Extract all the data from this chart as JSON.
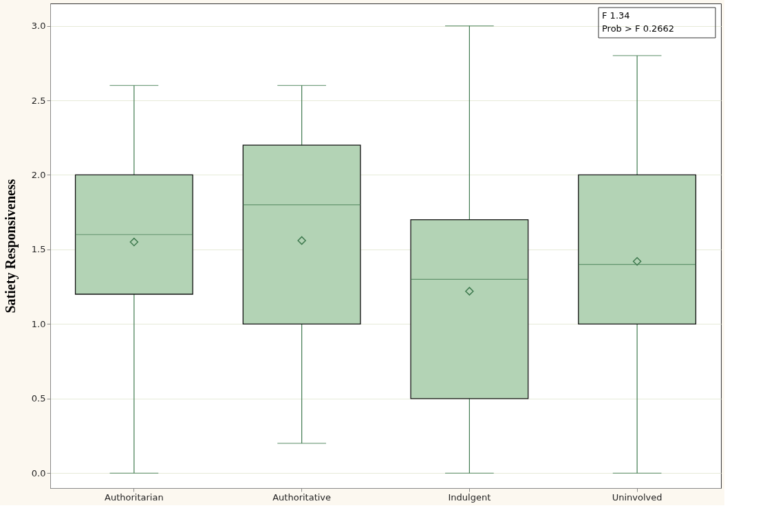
{
  "chart_data": {
    "type": "box",
    "ylabel": "Satiety Responsiveness",
    "categories": [
      "Authoritarian",
      "Authoritative",
      "Indulgent",
      "Uninvolved"
    ],
    "series": [
      {
        "color": "#b3d3b5",
        "boxes": [
          {
            "low": 0.0,
            "q1": 1.2,
            "median": 1.6,
            "q3": 2.0,
            "high": 2.6,
            "mean": 1.55
          },
          {
            "low": 0.2,
            "q1": 1.0,
            "median": 1.8,
            "q3": 2.2,
            "high": 2.6,
            "mean": 1.56
          },
          {
            "low": 0.0,
            "q1": 0.5,
            "median": 1.3,
            "q3": 1.7,
            "high": 3.0,
            "mean": 1.22
          },
          {
            "low": 0.0,
            "q1": 1.0,
            "median": 1.4,
            "q3": 2.0,
            "high": 2.8,
            "mean": 1.42
          }
        ]
      }
    ],
    "ylim": [
      -0.1,
      3.15
    ],
    "yticks": [
      {
        "value": 0,
        "label": "0.0"
      },
      {
        "value": 0.5,
        "label": "0.5"
      },
      {
        "value": 1,
        "label": "1.0"
      },
      {
        "value": 1.5,
        "label": "1.5"
      },
      {
        "value": 2,
        "label": "2.0"
      },
      {
        "value": 2.5,
        "label": "2.5"
      },
      {
        "value": 3,
        "label": "3.0"
      }
    ],
    "grid": "y",
    "marker": "diamond",
    "annotations": [
      "F 1.34",
      "Prob > F 0.2662"
    ]
  }
}
